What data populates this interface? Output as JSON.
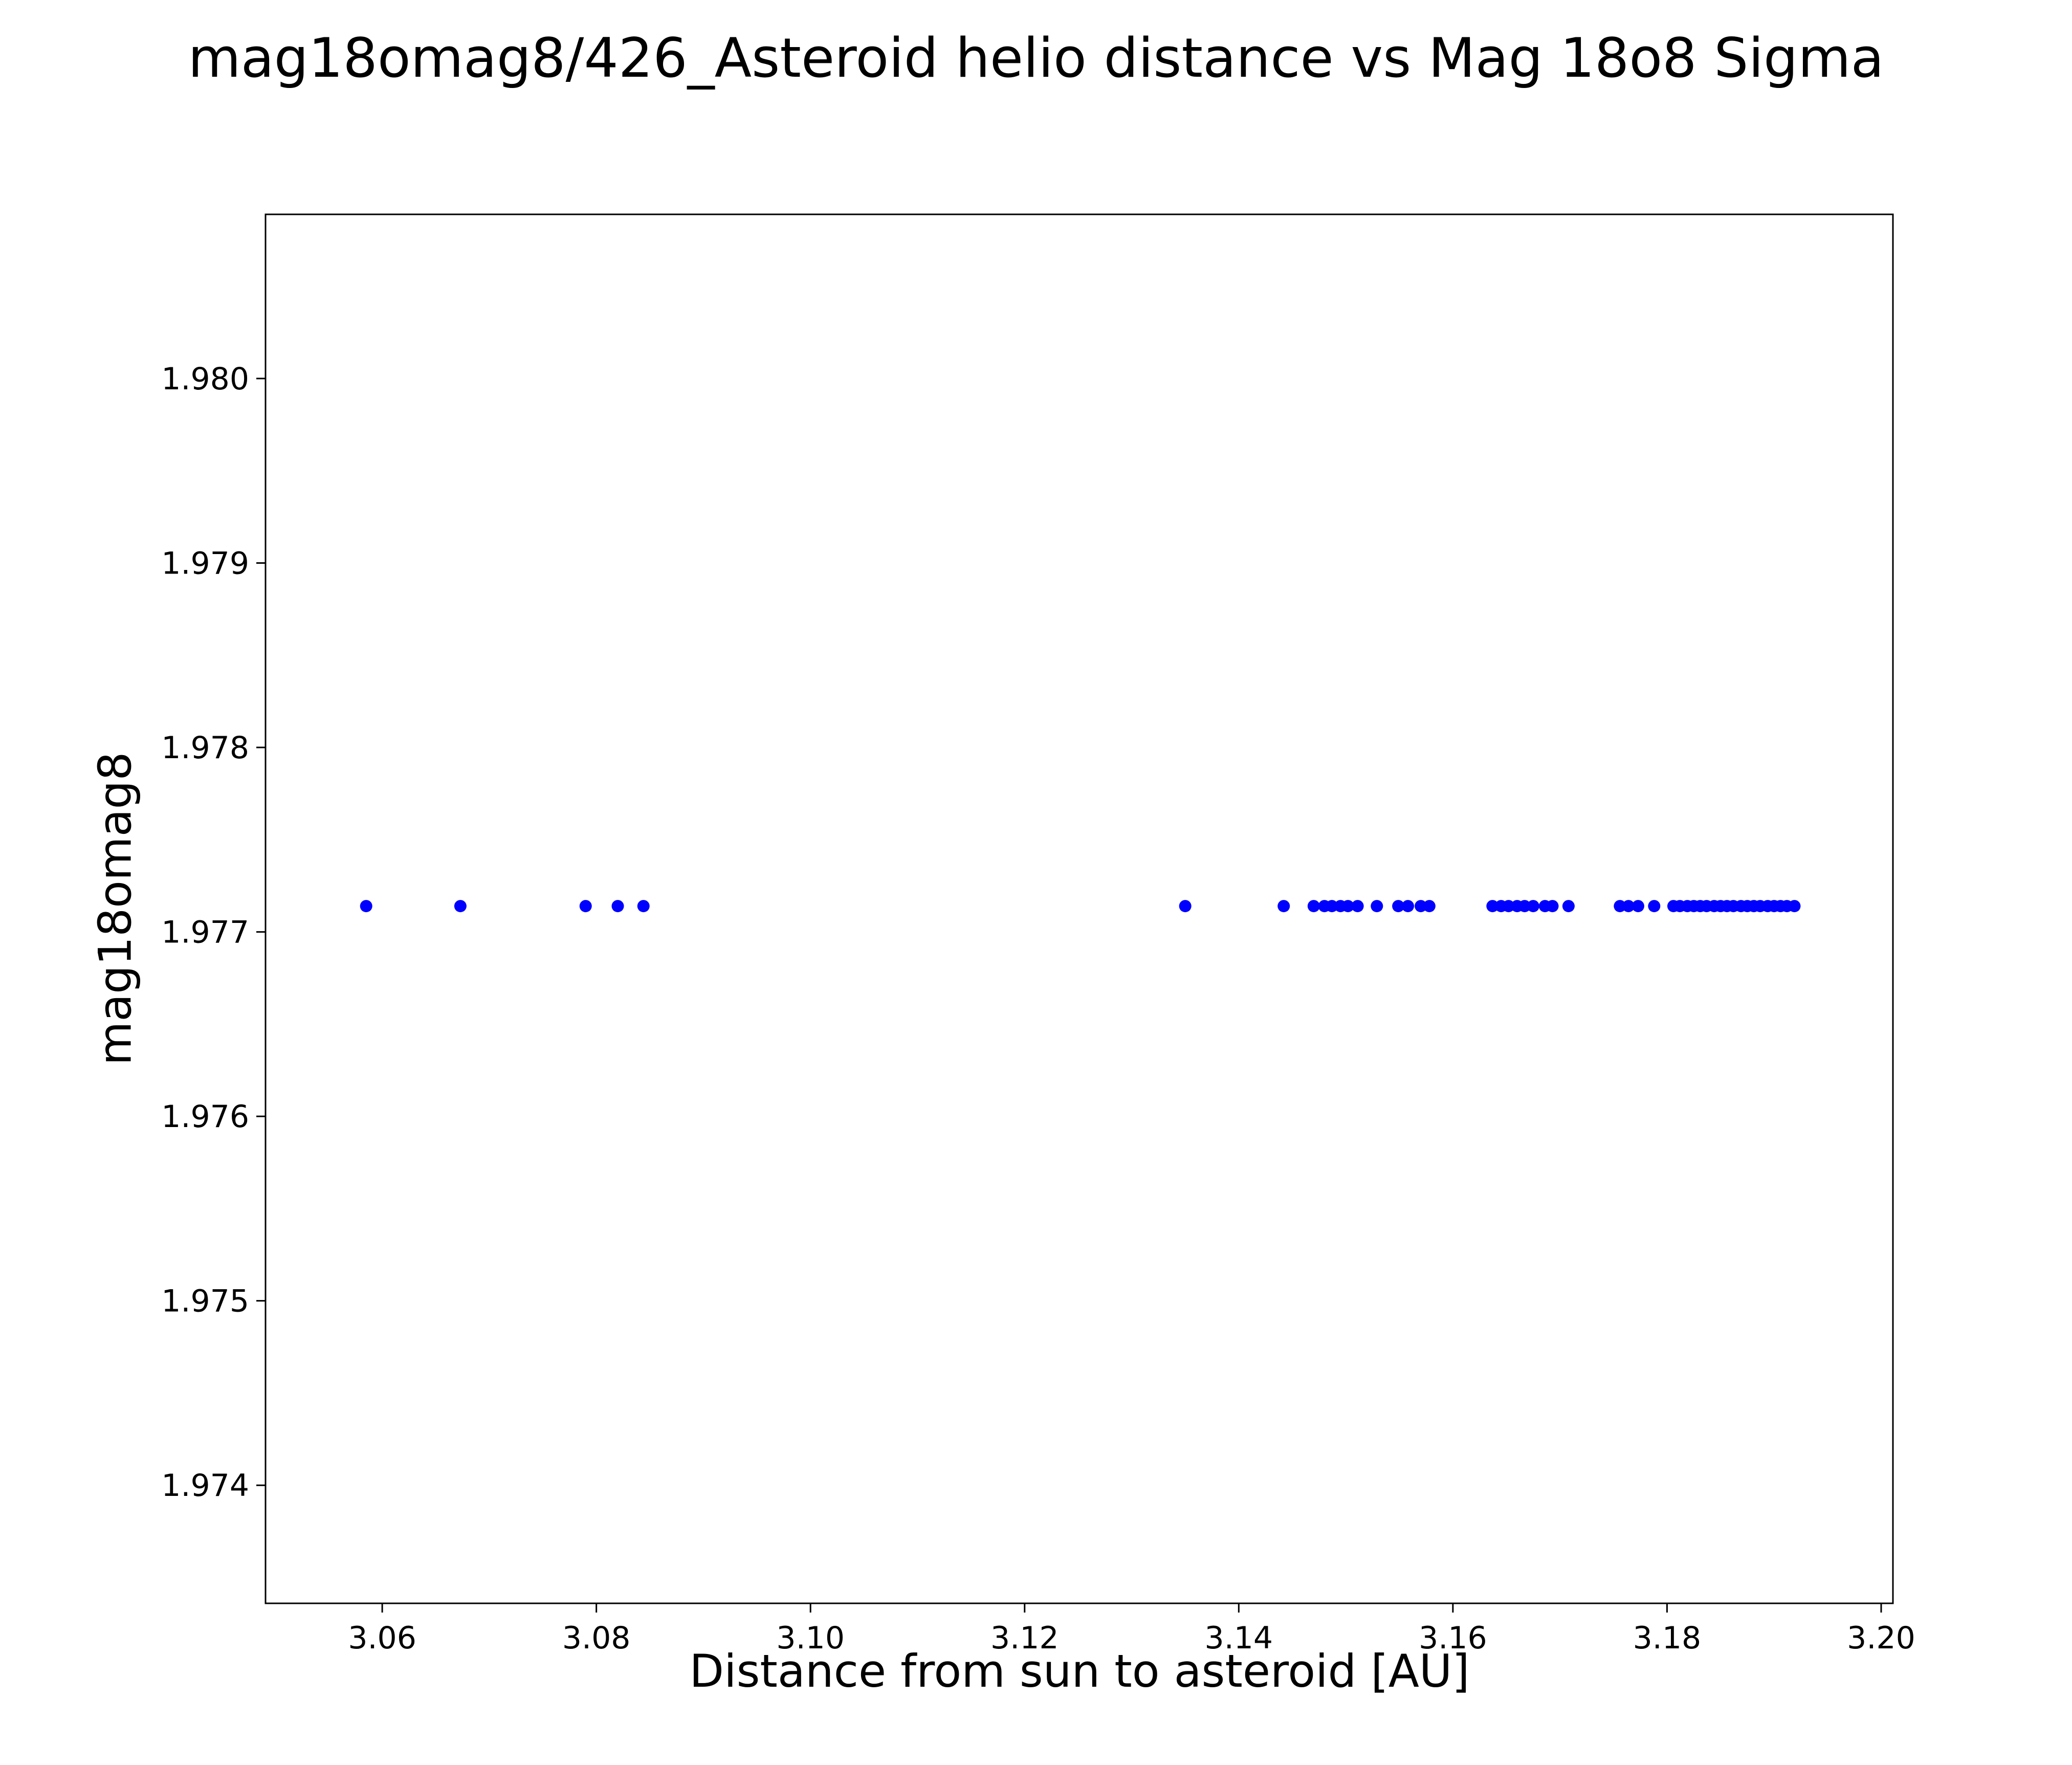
{
  "figure": {
    "background_color": "#ffffff"
  },
  "chart_data": {
    "type": "scatter",
    "title": "mag18omag8/426_Asteroid helio distance vs Mag 18o8 Sigma",
    "xlabel": "Distance from sun to asteroid [AU]",
    "ylabel": "mag18omag8",
    "xlim": [
      3.0491,
      3.2011
    ],
    "ylim": [
      1.97336,
      1.98089
    ],
    "xtick_values": [
      3.06,
      3.08,
      3.1,
      3.12,
      3.14,
      3.16,
      3.18,
      3.2
    ],
    "xtick_labels": [
      "3.06",
      "3.08",
      "3.10",
      "3.12",
      "3.14",
      "3.16",
      "3.18",
      "3.20"
    ],
    "ytick_values": [
      1.974,
      1.975,
      1.976,
      1.977,
      1.978,
      1.979,
      1.98
    ],
    "ytick_labels": [
      "1.974",
      "1.975",
      "1.976",
      "1.977",
      "1.978",
      "1.979",
      "1.980"
    ],
    "marker_color": "#0000ff",
    "marker_radius": 12,
    "grid": false,
    "legend": "none",
    "y_value": 1.97714,
    "x_values": [
      3.0585,
      3.0673,
      3.079,
      3.082,
      3.0844,
      3.135,
      3.1442,
      3.147,
      3.148,
      3.1487,
      3.1495,
      3.1502,
      3.1511,
      3.1529,
      3.1549,
      3.1558,
      3.157,
      3.1578,
      3.1637,
      3.1645,
      3.1652,
      3.166,
      3.1667,
      3.1675,
      3.1686,
      3.1693,
      3.1708,
      3.1756,
      3.1764,
      3.1773,
      3.1788,
      3.1806,
      3.1812,
      3.1819,
      3.1825,
      3.1831,
      3.1837,
      3.1844,
      3.185,
      3.1856,
      3.1862,
      3.1869,
      3.1875,
      3.1881,
      3.1887,
      3.1894,
      3.19,
      3.1906,
      3.1912,
      3.1919
    ]
  }
}
